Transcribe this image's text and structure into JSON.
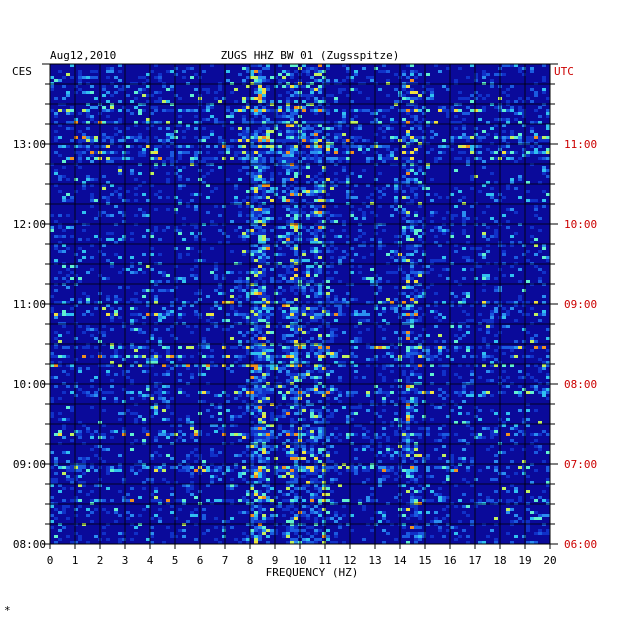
{
  "chart_data": {
    "type": "heatmap",
    "date": "Aug12,2010",
    "station": "ZUGS HHZ BW 01 (Zugsspitze)",
    "left_zone": "CES",
    "right_zone": "UTC",
    "xlabel": "FREQUENCY (HZ)",
    "xlim": [
      0,
      20
    ],
    "x_ticks": [
      "0",
      "1",
      "2",
      "3",
      "4",
      "5",
      "6",
      "7",
      "8",
      "9",
      "10",
      "11",
      "12",
      "13",
      "14",
      "15",
      "16",
      "17",
      "18",
      "19",
      "20"
    ],
    "y_ticks_left": [
      "13:00",
      "12:00",
      "11:00",
      "10:00",
      "09:00",
      "08:00"
    ],
    "y_ticks_right": [
      "11:00",
      "10:00",
      "09:00",
      "08:00",
      "07:00",
      "06:00"
    ],
    "y_tick_hours_from_bottom": [
      5,
      4,
      3,
      2,
      1,
      0
    ],
    "hours_span": 6,
    "colors": {
      "background": "#0a0a9a",
      "grid": "#000000",
      "right_labels": "#cc0000"
    },
    "bright_bands_hz": [
      {
        "hz": 8.3,
        "strength": 0.9
      },
      {
        "hz": 9.7,
        "strength": 0.6
      },
      {
        "hz": 10.7,
        "strength": 0.55
      },
      {
        "hz": 14.3,
        "strength": 0.7
      }
    ],
    "corner_mark": "*"
  }
}
